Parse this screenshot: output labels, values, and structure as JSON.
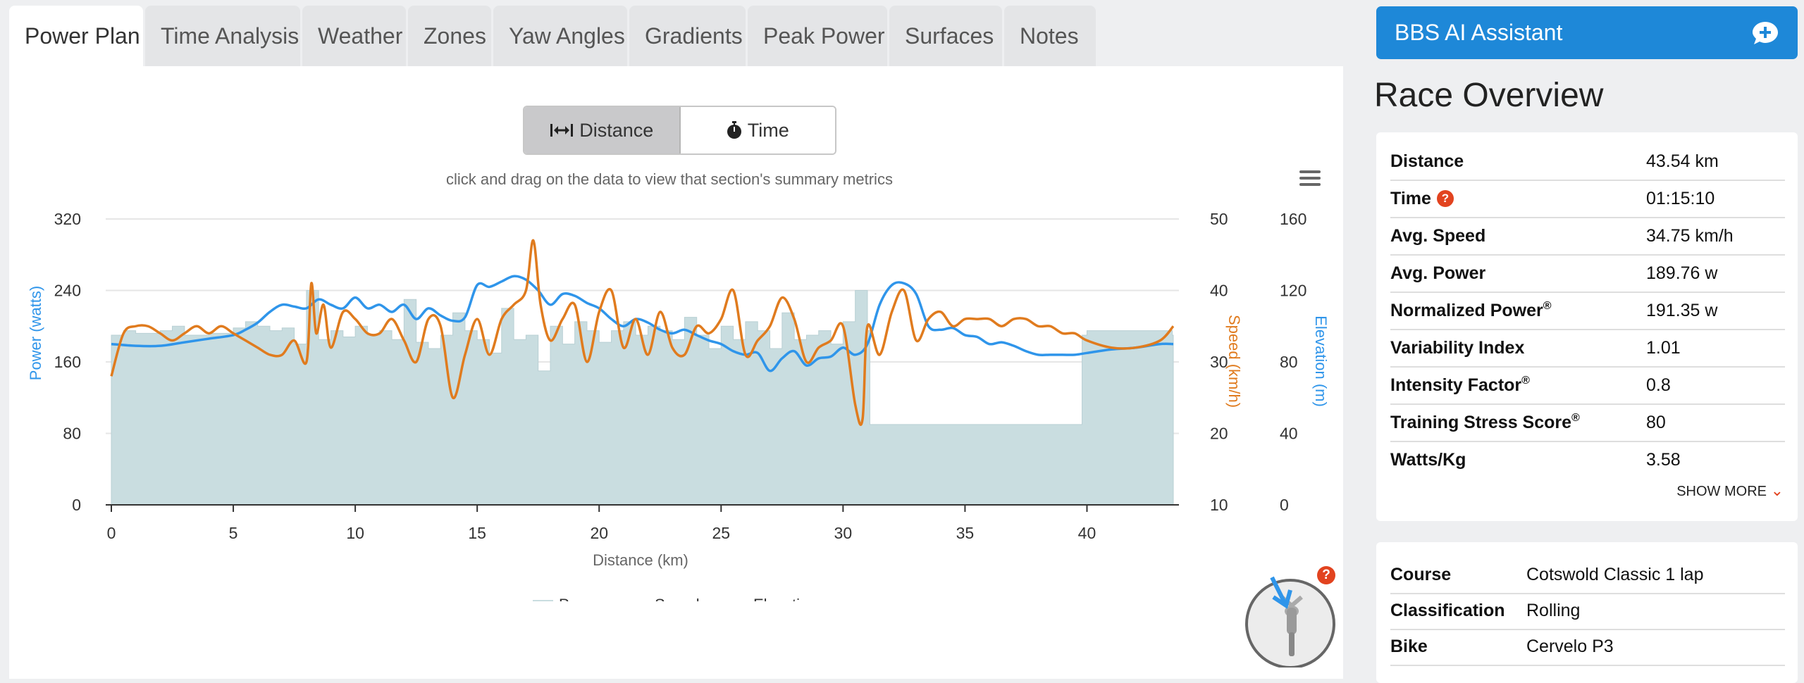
{
  "tabs": [
    {
      "label": "Power Plan",
      "active": true
    },
    {
      "label": "Time Analysis"
    },
    {
      "label": "Weather"
    },
    {
      "label": "Zones"
    },
    {
      "label": "Yaw Angles"
    },
    {
      "label": "Gradients"
    },
    {
      "label": "Peak Power"
    },
    {
      "label": "Surfaces"
    },
    {
      "label": "Notes"
    }
  ],
  "toggle": {
    "distance": "Distance",
    "time": "Time",
    "selected": "Distance"
  },
  "hint": "click and drag on the data to view that section's summary metrics",
  "ai_assistant": {
    "label": "BBS AI Assistant"
  },
  "overview": {
    "title": "Race Overview",
    "rows": [
      {
        "label": "Distance",
        "value": "43.54 km"
      },
      {
        "label": "Time",
        "value": "01:15:10"
      },
      {
        "label": "Avg. Speed",
        "value": "34.75 km/h"
      },
      {
        "label": "Avg. Power",
        "value": "189.76 w"
      },
      {
        "label": "Normalized Power",
        "value": "191.35 w"
      },
      {
        "label": "Variability Index",
        "value": "1.01"
      },
      {
        "label": "Intensity Factor",
        "value": "0.8"
      },
      {
        "label": "Training Stress Score",
        "value": "80"
      },
      {
        "label": "Watts/Kg",
        "value": "3.58"
      }
    ],
    "registered": "®",
    "help": "?",
    "show_more": "SHOW MORE"
  },
  "course_card": {
    "rows": [
      {
        "label": "Course",
        "value": "Cotswold Classic 1 lap"
      },
      {
        "label": "Classification",
        "value": "Rolling"
      },
      {
        "label": "Bike",
        "value": "Cervelo P3"
      }
    ]
  },
  "colors": {
    "power": "#c9dde0",
    "speed": "#e07b1e",
    "elevation": "#2f95ea",
    "accent": "#1e88d8",
    "badge": "#e2431f"
  },
  "icons": {
    "distance": "arrows-horizontal-icon",
    "time": "stopwatch-icon",
    "ai": "chat-plus-icon",
    "menu": "hamburger-menu-icon",
    "cyclist": "cyclist-position-icon"
  },
  "chart_data": {
    "type": "line",
    "xlabel": "Distance (km)",
    "x_ticks": [
      "0",
      "5",
      "10",
      "15",
      "20",
      "25",
      "30",
      "35",
      "40"
    ],
    "xlim": [
      0,
      43.54
    ],
    "axes": {
      "power": {
        "label": "Power (watts)",
        "ticks": [
          "0",
          "80",
          "160",
          "240",
          "320"
        ],
        "range": [
          0,
          320
        ]
      },
      "speed": {
        "label": "Speed (km/h)",
        "ticks": [
          "10",
          "20",
          "30",
          "40",
          "50"
        ],
        "range": [
          10,
          50
        ]
      },
      "elevation": {
        "label": "Elevation (m)",
        "ticks": [
          "0",
          "40",
          "80",
          "120",
          "160"
        ],
        "range": [
          0,
          160
        ]
      }
    },
    "legend_position": "bottom",
    "series": [
      {
        "name": "Power",
        "kind": "area",
        "axis": "power",
        "x": [
          0,
          0.5,
          1,
          2,
          2.5,
          3,
          4,
          5,
          5.5,
          6,
          6.5,
          7,
          7.5,
          8,
          8.5,
          9,
          9.5,
          10,
          10.5,
          11,
          11.5,
          12,
          12.5,
          13,
          13.5,
          14,
          14.5,
          15,
          15.5,
          16,
          16.5,
          17,
          17.5,
          18,
          18.5,
          19,
          19.5,
          20,
          20.5,
          21,
          21.5,
          22,
          22.5,
          23,
          23.5,
          24,
          24.5,
          25,
          25.5,
          26,
          26.5,
          27,
          27.5,
          28,
          28.5,
          29,
          29.5,
          30,
          30.5,
          31,
          31.1,
          39.7,
          39.8,
          40,
          41,
          42,
          43.5
        ],
        "values": [
          190,
          195,
          192,
          195,
          200,
          190,
          192,
          198,
          205,
          200,
          195,
          198,
          180,
          240,
          185,
          195,
          188,
          200,
          190,
          195,
          185,
          230,
          182,
          175,
          190,
          215,
          195,
          185,
          170,
          220,
          185,
          190,
          150,
          200,
          180,
          205,
          195,
          182,
          195,
          205,
          190,
          200,
          195,
          185,
          210,
          190,
          175,
          200,
          185,
          205,
          195,
          175,
          215,
          185,
          190,
          195,
          180,
          205,
          240,
          195,
          90,
          90,
          190,
          195,
          195,
          195,
          190
        ]
      },
      {
        "name": "Speed",
        "kind": "line",
        "axis": "speed",
        "x": [
          0,
          0.5,
          1,
          1.5,
          2,
          2.5,
          3,
          3.5,
          4,
          4.5,
          5,
          5.5,
          6,
          6.5,
          7,
          7.5,
          8,
          8.2,
          8.4,
          8.7,
          9,
          9.5,
          10,
          10.5,
          11,
          11.5,
          12,
          12.5,
          13,
          13.5,
          14,
          14.5,
          15,
          15.5,
          16,
          16.5,
          17,
          17.3,
          17.6,
          18,
          18.5,
          19,
          19.5,
          20,
          20.5,
          21,
          21.5,
          22,
          22.5,
          23,
          23.5,
          24,
          24.5,
          25,
          25.5,
          26,
          26.5,
          27,
          27.5,
          28,
          28.5,
          29,
          29.5,
          30,
          30.5,
          30.8,
          31,
          31.5,
          32,
          32.5,
          33,
          33.5,
          34,
          34.5,
          35,
          35.5,
          36,
          36.5,
          37,
          37.5,
          38,
          38.5,
          39,
          39.5,
          40,
          41,
          42,
          43,
          43.54
        ],
        "values": [
          28,
          34,
          35,
          35,
          34,
          33,
          34,
          35,
          34,
          35,
          34,
          33,
          32,
          31,
          31,
          33,
          30,
          41,
          34,
          38,
          32,
          37,
          36,
          34,
          34,
          36,
          33,
          30,
          36,
          35,
          25,
          31,
          36,
          31,
          36,
          38,
          40,
          47,
          38,
          33,
          36,
          38,
          30,
          37,
          40,
          32,
          36,
          31,
          37,
          32,
          31,
          35,
          34,
          36,
          40,
          31,
          33,
          35,
          39,
          36,
          30,
          32,
          33,
          35,
          24,
          22,
          35,
          31,
          37,
          40,
          33,
          36,
          37,
          35,
          36,
          36,
          36,
          35,
          36,
          36,
          35,
          35,
          34,
          34,
          33,
          32,
          32,
          33,
          35
        ]
      },
      {
        "name": "Elevation",
        "kind": "line",
        "axis": "elevation",
        "x": [
          0,
          1,
          2,
          3,
          4,
          5,
          5.5,
          6,
          6.5,
          7,
          7.5,
          8,
          8.5,
          9,
          9.5,
          10,
          10.5,
          11,
          11.5,
          12,
          12.5,
          13,
          13.5,
          14,
          14.5,
          15,
          15.5,
          16,
          16.5,
          17,
          17.5,
          18,
          18.5,
          19,
          19.5,
          20,
          20.5,
          21,
          21.5,
          22,
          22.5,
          23,
          23.5,
          24,
          24.5,
          25,
          25.5,
          26,
          26.5,
          27,
          27.5,
          28,
          28.5,
          29,
          29.5,
          30,
          30.5,
          31,
          31.5,
          32,
          32.5,
          33,
          33.5,
          34,
          34.5,
          35,
          35.5,
          36,
          36.5,
          37,
          37.5,
          38,
          38.5,
          39,
          39.5,
          40,
          41,
          42,
          43,
          43.54
        ],
        "values": [
          90,
          89,
          89,
          91,
          93,
          95,
          98,
          102,
          108,
          112,
          111,
          110,
          115,
          112,
          110,
          116,
          110,
          112,
          108,
          112,
          104,
          110,
          106,
          103,
          105,
          123,
          122,
          125,
          128,
          126,
          120,
          112,
          118,
          117,
          113,
          110,
          104,
          100,
          104,
          102,
          98,
          96,
          98,
          95,
          92,
          90,
          86,
          84,
          85,
          75,
          82,
          86,
          78,
          82,
          83,
          88,
          84,
          90,
          112,
          123,
          124,
          118,
          100,
          98,
          99,
          95,
          94,
          90,
          91,
          89,
          86,
          84,
          84,
          84,
          84,
          85,
          87,
          88,
          90,
          90
        ]
      }
    ]
  }
}
